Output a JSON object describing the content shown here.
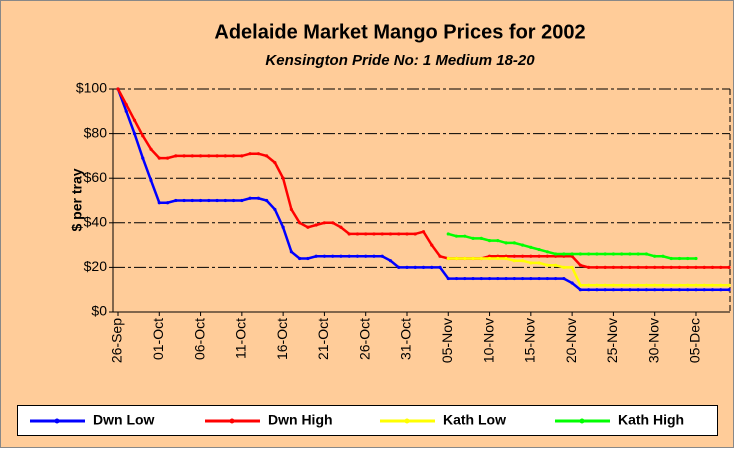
{
  "chart_data": {
    "type": "line",
    "title": "Adelaide Market Mango Prices for 2002",
    "subtitle": "Kensington Pride No: 1 Medium 18-20",
    "y_label": "$ per tray",
    "legend": "bottom",
    "grid": true,
    "ylim": [
      0,
      100
    ],
    "yticks": [
      {
        "value": 0,
        "label": "$0"
      },
      {
        "value": 20,
        "label": "$20"
      },
      {
        "value": 40,
        "label": "$40"
      },
      {
        "value": 60,
        "label": "$60"
      },
      {
        "value": 80,
        "label": "$80"
      },
      {
        "value": 100,
        "label": "$100"
      }
    ],
    "categories": [
      "26-Sep",
      null,
      null,
      null,
      null,
      "01-Oct",
      null,
      null,
      null,
      null,
      "06-Oct",
      null,
      null,
      null,
      null,
      "11-Oct",
      null,
      null,
      null,
      null,
      "16-Oct",
      null,
      null,
      null,
      null,
      "21-Oct",
      null,
      null,
      null,
      null,
      "26-Oct",
      null,
      null,
      null,
      null,
      "31-Oct",
      null,
      null,
      null,
      null,
      "05-Nov",
      null,
      null,
      null,
      null,
      "10-Nov",
      null,
      null,
      null,
      null,
      "15-Nov",
      null,
      null,
      null,
      null,
      "20-Nov",
      null,
      null,
      null,
      null,
      "25-Nov",
      null,
      null,
      null,
      null,
      "30-Nov",
      null,
      null,
      null,
      null,
      "05-Dec",
      null,
      null,
      null,
      null
    ],
    "series": [
      {
        "name": "Dwn Low",
        "color": "#0000ff",
        "values": [
          100,
          90,
          80,
          69,
          59,
          49,
          49,
          50,
          50,
          50,
          50,
          50,
          50,
          50,
          50,
          50,
          51,
          51,
          50,
          46,
          38,
          27,
          24,
          24,
          25,
          25,
          25,
          25,
          25,
          25,
          25,
          25,
          25,
          23,
          20,
          20,
          20,
          20,
          20,
          20,
          15,
          15,
          15,
          15,
          15,
          15,
          15,
          15,
          15,
          15,
          15,
          15,
          15,
          15,
          15,
          13,
          10,
          10,
          10,
          10,
          10,
          10,
          10,
          10,
          10,
          10,
          10,
          10,
          10,
          10,
          10,
          10,
          10,
          10,
          10
        ]
      },
      {
        "name": "Dwn High",
        "color": "#ff0000",
        "values": [
          100,
          93,
          86,
          79,
          73,
          69,
          69,
          70,
          70,
          70,
          70,
          70,
          70,
          70,
          70,
          70,
          71,
          71,
          70,
          67,
          60,
          46,
          40,
          38,
          39,
          40,
          40,
          38,
          35,
          35,
          35,
          35,
          35,
          35,
          35,
          35,
          35,
          36,
          30,
          25,
          24,
          24,
          24,
          24,
          24,
          25,
          25,
          25,
          25,
          25,
          25,
          25,
          25,
          25,
          25,
          25,
          21,
          20,
          20,
          20,
          20,
          20,
          20,
          20,
          20,
          20,
          20,
          20,
          20,
          20,
          20,
          20,
          20,
          20,
          20
        ]
      },
      {
        "name": "Kath Low",
        "color": "#ffff00",
        "values": [
          null,
          null,
          null,
          null,
          null,
          null,
          null,
          null,
          null,
          null,
          null,
          null,
          null,
          null,
          null,
          null,
          null,
          null,
          null,
          null,
          null,
          null,
          null,
          null,
          null,
          null,
          null,
          null,
          null,
          null,
          null,
          null,
          null,
          null,
          null,
          null,
          null,
          null,
          null,
          null,
          24,
          24,
          24,
          24,
          24,
          24,
          24,
          24,
          23,
          23,
          22,
          22,
          21,
          21,
          20,
          20,
          12,
          12,
          12,
          12,
          12,
          12,
          12,
          12,
          12,
          12,
          12,
          12,
          12,
          12,
          12,
          12,
          12,
          12,
          12
        ]
      },
      {
        "name": "Kath High",
        "color": "#00ff00",
        "values": [
          null,
          null,
          null,
          null,
          null,
          null,
          null,
          null,
          null,
          null,
          null,
          null,
          null,
          null,
          null,
          null,
          null,
          null,
          null,
          null,
          null,
          null,
          null,
          null,
          null,
          null,
          null,
          null,
          null,
          null,
          null,
          null,
          null,
          null,
          null,
          null,
          null,
          null,
          null,
          null,
          35,
          34,
          34,
          33,
          33,
          32,
          32,
          31,
          31,
          30,
          29,
          28,
          27,
          26,
          26,
          26,
          26,
          26,
          26,
          26,
          26,
          26,
          26,
          26,
          26,
          25,
          25,
          24,
          24,
          24,
          24,
          null,
          null,
          null,
          null
        ]
      }
    ]
  }
}
